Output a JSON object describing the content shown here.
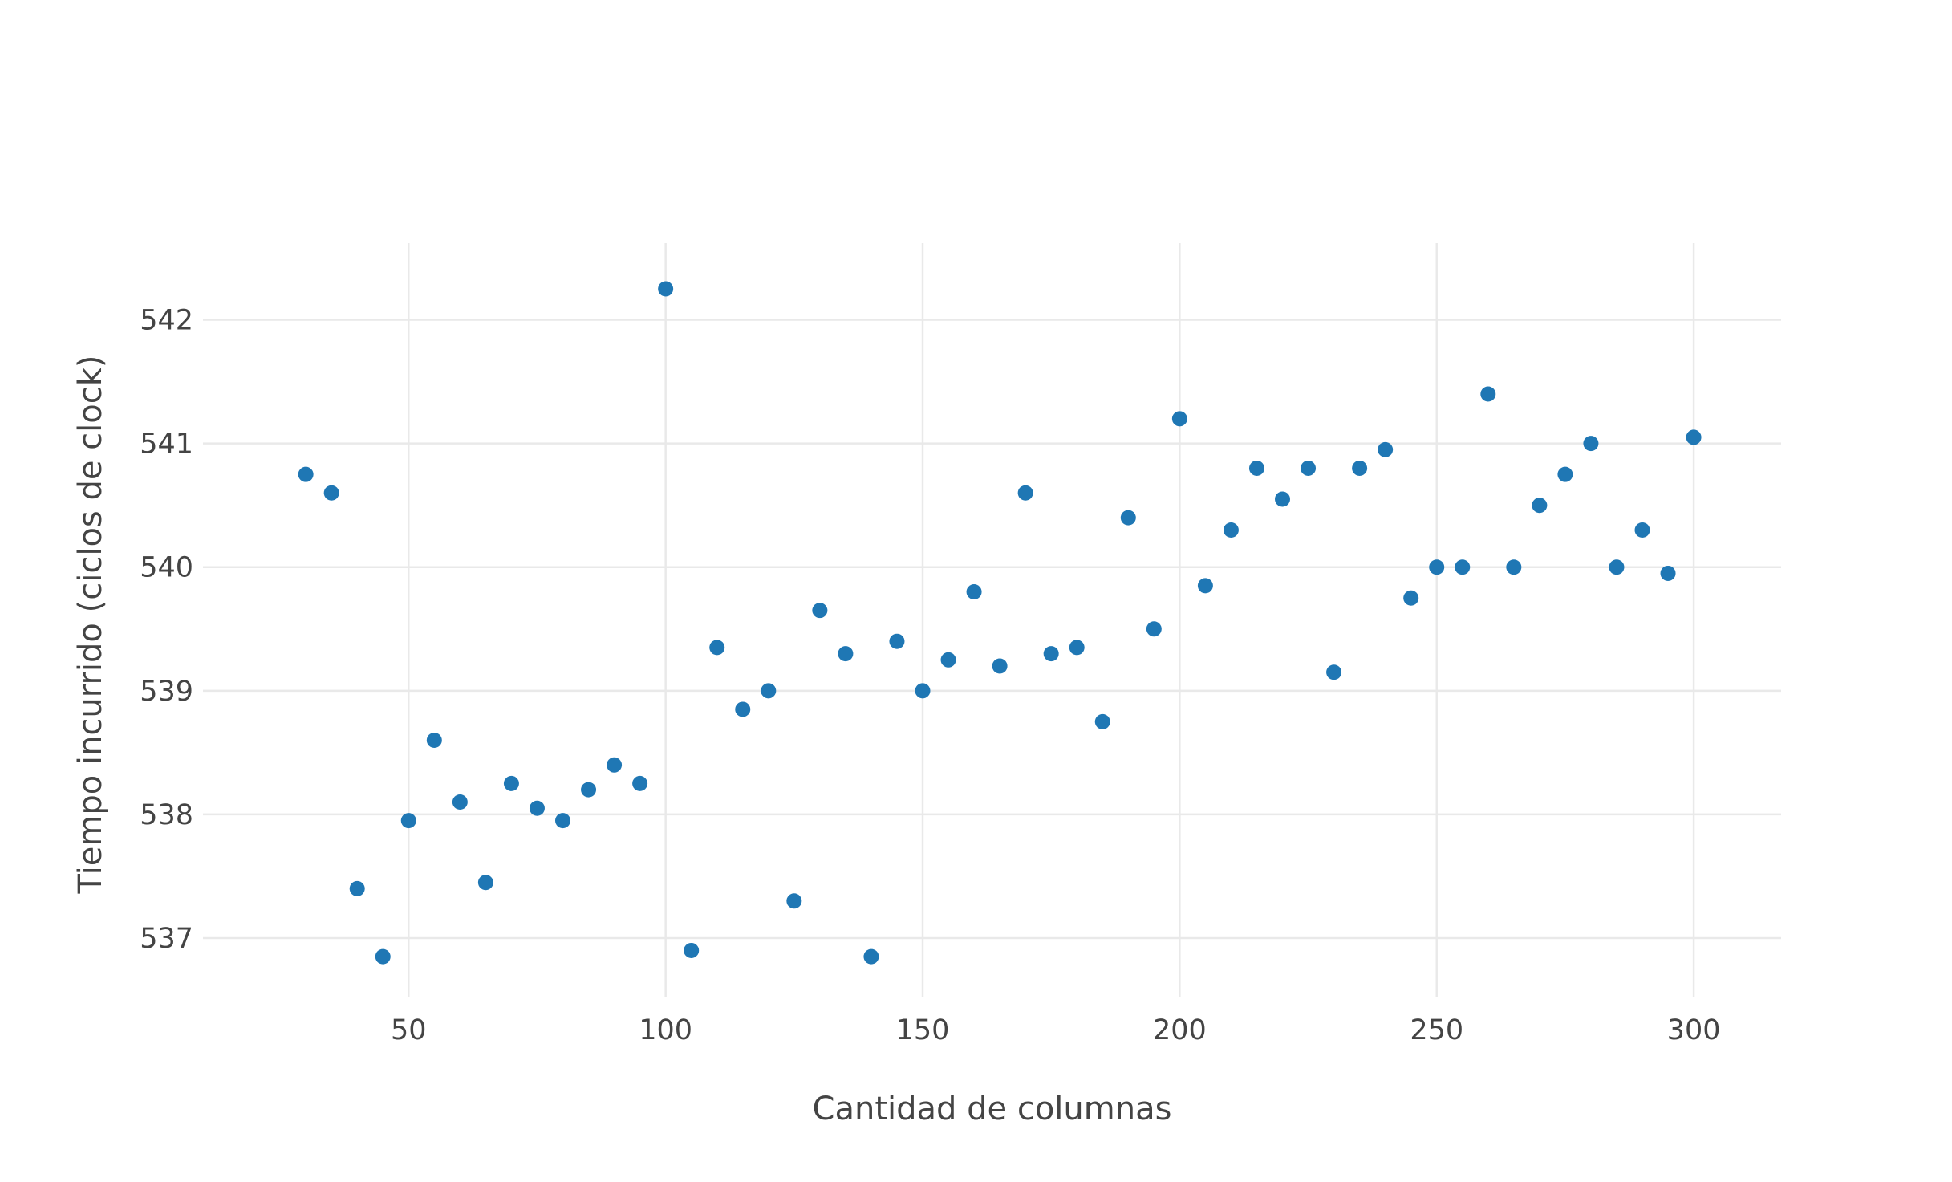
{
  "chart_data": {
    "type": "scatter",
    "title": "",
    "xlabel": "Cantidad de columnas",
    "ylabel": "Tiempo incurrido (ciclos de clock)",
    "xlim": [
      10,
      317
    ],
    "ylim": [
      536.52,
      542.62
    ],
    "xticks": [
      50,
      100,
      150,
      200,
      250,
      300
    ],
    "yticks": [
      537,
      538,
      539,
      540,
      541,
      542
    ],
    "grid": true,
    "legend": "none",
    "marker_color": "#1f77b4",
    "series": [
      {
        "x": [
          30,
          35,
          40,
          45,
          50,
          55,
          60,
          65,
          70,
          75,
          80,
          85,
          90,
          95,
          100,
          105,
          110,
          115,
          120,
          125,
          130,
          135,
          140,
          145,
          150,
          155,
          160,
          165,
          170,
          175,
          180,
          185,
          190,
          195,
          200,
          205,
          210,
          215,
          220,
          225,
          230,
          235,
          240,
          245,
          250,
          255,
          260,
          265,
          270,
          275,
          280,
          285,
          290,
          295,
          300
        ],
        "y": [
          540.75,
          540.6,
          537.4,
          536.85,
          537.95,
          538.6,
          538.1,
          537.45,
          538.25,
          538.05,
          537.95,
          538.2,
          538.4,
          538.25,
          542.25,
          536.9,
          539.35,
          538.85,
          539.0,
          537.3,
          539.65,
          539.3,
          536.85,
          539.4,
          539.0,
          539.25,
          539.8,
          539.2,
          540.6,
          539.3,
          539.35,
          538.75,
          540.4,
          539.5,
          541.2,
          539.85,
          540.3,
          540.8,
          540.55,
          540.8,
          539.15,
          540.8,
          540.95,
          539.75,
          540.0,
          540.0,
          541.4,
          540.0,
          540.5,
          540.75,
          541.0,
          540.0,
          540.3,
          539.95,
          541.05
        ]
      }
    ]
  }
}
